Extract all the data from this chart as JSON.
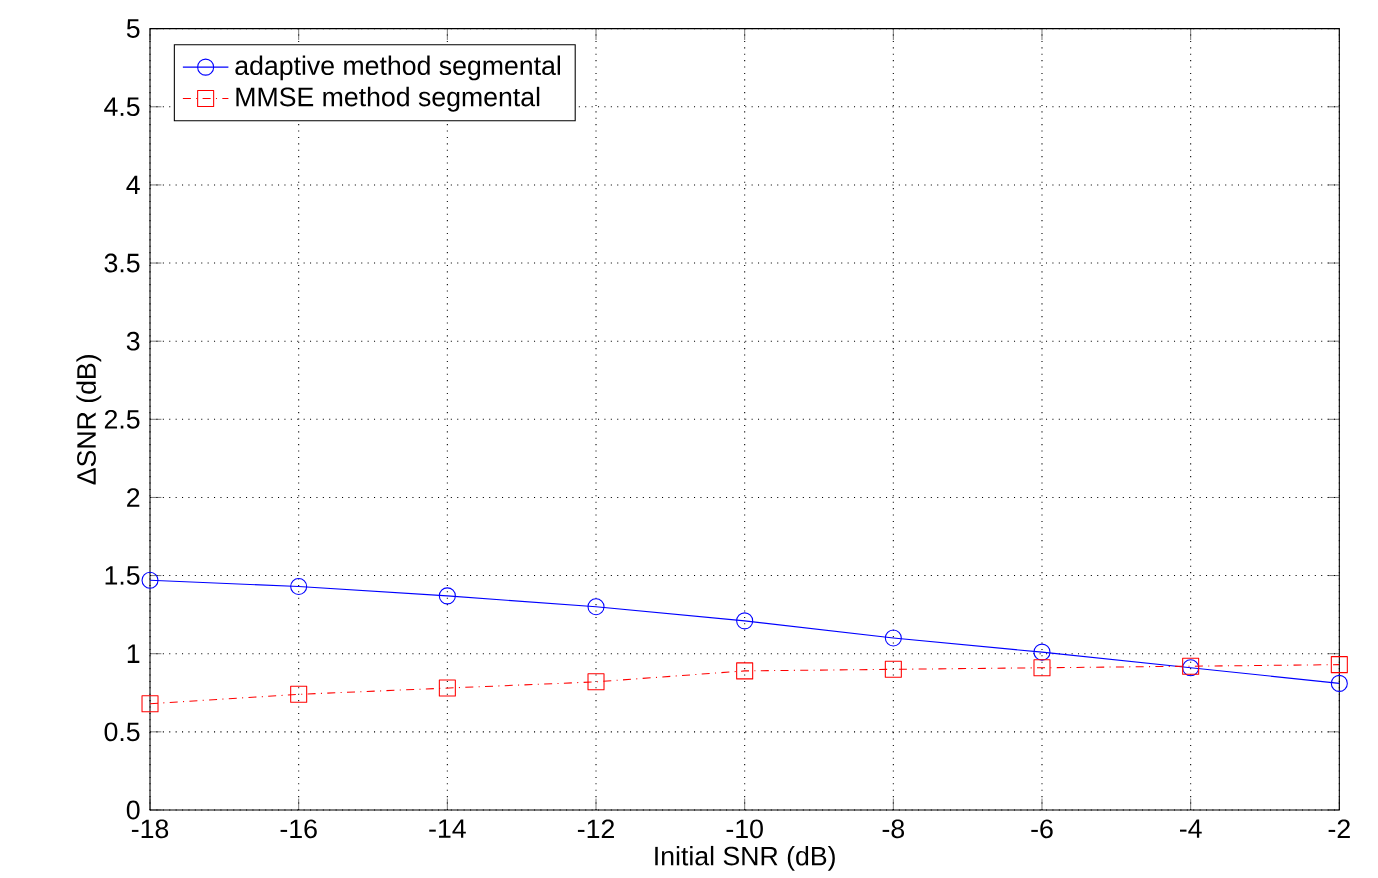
{
  "chart_data": {
    "type": "line",
    "xlabel": "Initial SNR (dB)",
    "ylabel": "ΔSNR (dB)",
    "x": [
      -18,
      -16,
      -14,
      -12,
      -10,
      -8,
      -6,
      -4,
      -2
    ],
    "series": [
      {
        "name": "adaptive method segmental",
        "color": "#0000ff",
        "marker": "circle",
        "line_style": "solid",
        "values": [
          1.47,
          1.43,
          1.37,
          1.3,
          1.21,
          1.1,
          1.01,
          0.91,
          0.81
        ]
      },
      {
        "name": "MMSE method segmental",
        "color": "#ff0000",
        "marker": "square",
        "line_style": "dashdot",
        "values": [
          0.68,
          0.74,
          0.78,
          0.82,
          0.89,
          0.9,
          0.91,
          0.92,
          0.93
        ]
      }
    ],
    "xlim": [
      -18,
      -2
    ],
    "ylim": [
      0,
      5
    ],
    "xticks": [
      -18,
      -16,
      -14,
      -12,
      -10,
      -8,
      -6,
      -4,
      -2
    ],
    "yticks": [
      0,
      0.5,
      1,
      1.5,
      2,
      2.5,
      3,
      3.5,
      4,
      4.5,
      5
    ],
    "grid": true,
    "legend": "top left"
  }
}
